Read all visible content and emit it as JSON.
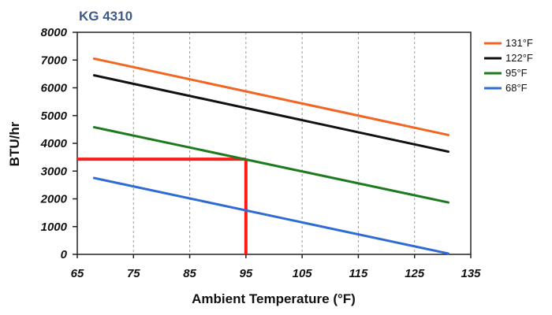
{
  "chart_data": {
    "type": "line",
    "title": "KG 4310",
    "xlabel": "Ambient Temperature (°F)",
    "ylabel": "BTU/hr",
    "xlim": [
      65,
      135
    ],
    "ylim": [
      0,
      8000
    ],
    "xticks": [
      "65",
      "75",
      "85",
      "95",
      "105",
      "115",
      "125",
      "135"
    ],
    "yticks": [
      "0",
      "1000",
      "2000",
      "3000",
      "4000",
      "5000",
      "6000",
      "7000",
      "8000"
    ],
    "grid": "dashed vertical gridlines",
    "legend_position": "right",
    "series": [
      {
        "name": "131°F",
        "color": "#f26522",
        "x": [
          68,
          131
        ],
        "y": [
          7050,
          4300
        ]
      },
      {
        "name": "122°F",
        "color": "#111111",
        "x": [
          68,
          131
        ],
        "y": [
          6450,
          3700
        ]
      },
      {
        "name": "95°F",
        "color": "#1e7a1e",
        "x": [
          68,
          131
        ],
        "y": [
          4580,
          1870
        ]
      },
      {
        "name": "68°F",
        "color": "#2e6bd4",
        "x": [
          68,
          131
        ],
        "y": [
          2750,
          30
        ]
      }
    ],
    "reference_lines": {
      "color": "#ff1a1a",
      "vertical": {
        "x": 95,
        "y_from": 0,
        "y_to": 3430
      },
      "horizontal": {
        "y": 3430,
        "x_from": 65,
        "x_to": 95
      }
    }
  }
}
